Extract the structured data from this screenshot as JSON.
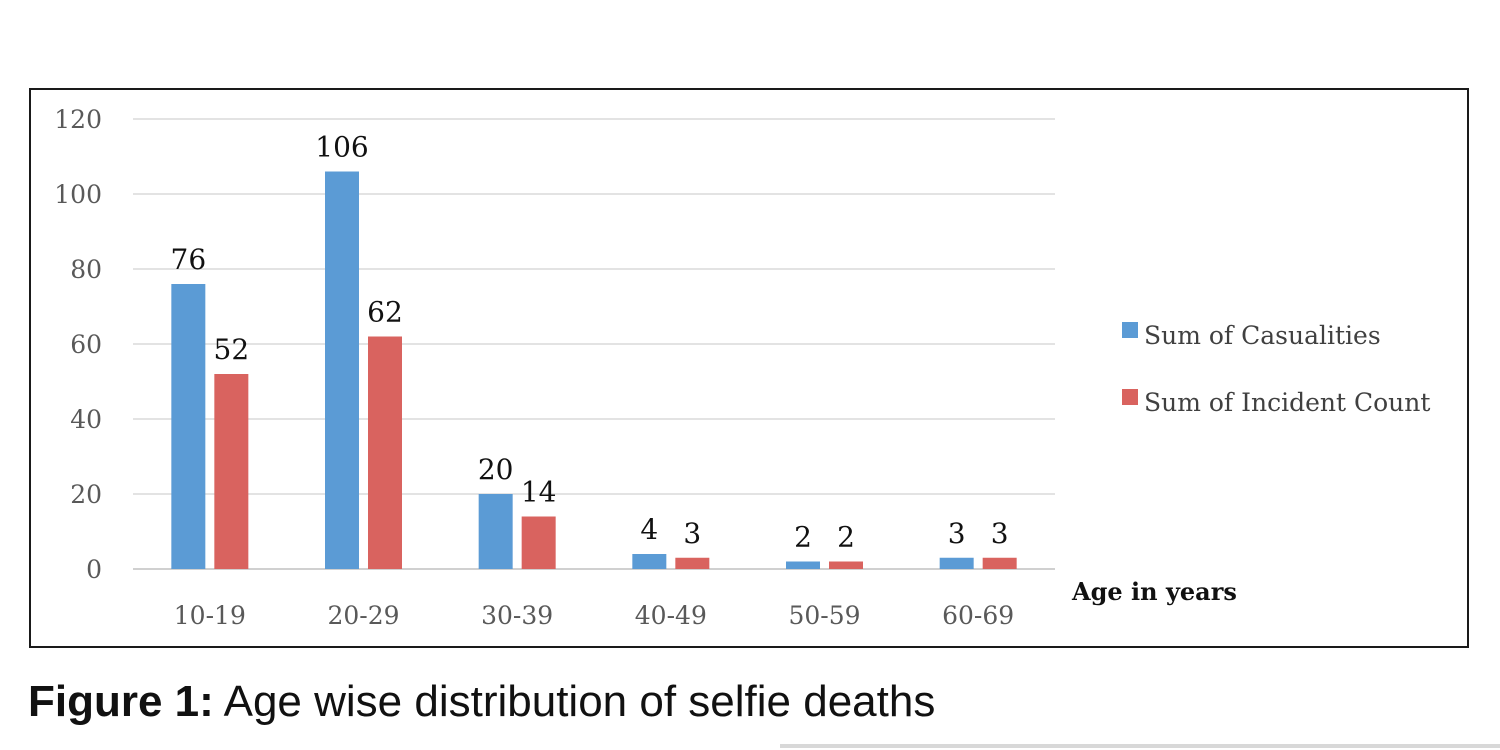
{
  "chart_data": {
    "type": "bar",
    "categories": [
      "10-19",
      "20-29",
      "30-39",
      "40-49",
      "50-59",
      "60-69"
    ],
    "series": [
      {
        "name": "Sum of Casualities",
        "values": [
          76,
          106,
          20,
          4,
          2,
          3
        ],
        "color": "#5b9bd5"
      },
      {
        "name": "Sum of Incident Count",
        "values": [
          52,
          62,
          14,
          3,
          2,
          3
        ],
        "color": "#d9635f"
      }
    ],
    "xlabel": "Age in years",
    "ylabel": "",
    "ylim": [
      0,
      120
    ],
    "yticks": [
      0,
      20,
      40,
      60,
      80,
      100,
      120
    ],
    "grid": true,
    "legend_position": "right",
    "data_labels": true
  },
  "caption": {
    "label": "Figure 1:",
    "text": " Age wise distribution of selfie deaths"
  }
}
